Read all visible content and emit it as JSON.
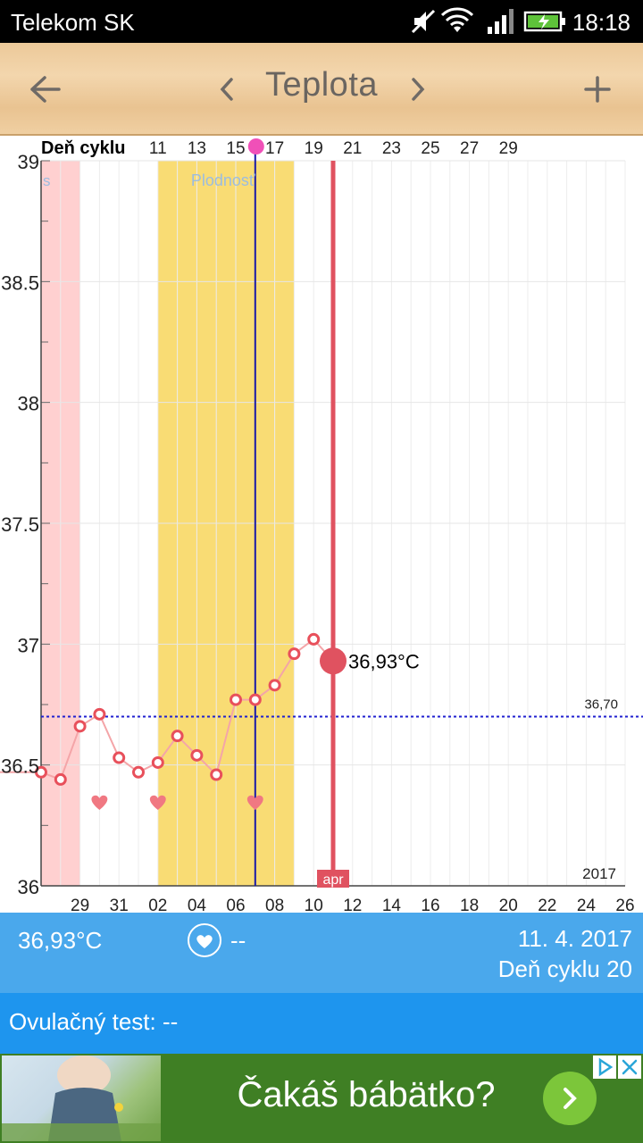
{
  "status_bar": {
    "carrier": "Telekom SK",
    "time": "18:18"
  },
  "toolbar": {
    "title": "Teplota",
    "back_icon": "arrow-left-icon",
    "prev_icon": "chevron-left-icon",
    "next_icon": "chevron-right-icon",
    "add_icon": "plus-icon"
  },
  "chart_data": {
    "type": "line",
    "ylim": [
      36,
      39
    ],
    "y_ticks": [
      "39",
      "38.5",
      "38",
      "37.5",
      "37",
      "36.5",
      "36"
    ],
    "top_axis_label": "Deň cyklu",
    "top_ticks": [
      "11",
      "13",
      "15",
      "17",
      "19",
      "21",
      "23",
      "25",
      "27",
      "29"
    ],
    "bottom_ticks": [
      "29",
      "31",
      "02",
      "04",
      "06",
      "08",
      "10",
      "12",
      "14",
      "16",
      "18",
      "20",
      "22",
      "24",
      "26"
    ],
    "month_label": "apr",
    "year_label": "2017",
    "menses_label": "s",
    "fertile_label": "Plodnosť",
    "coverline": 36.7,
    "coverline_label": "36,70",
    "series": [
      {
        "values": [
          36.47,
          36.44,
          36.66,
          36.71,
          36.53,
          36.47,
          36.51,
          36.62,
          36.54,
          36.46,
          36.77,
          36.77,
          36.83,
          36.96,
          37.02
        ]
      }
    ],
    "selected_value": 36.93,
    "selected_label": "36,93°C",
    "intercourse_days": [
      3,
      6,
      11
    ],
    "colors": {
      "menses": "#ffd0d0",
      "fertile": "#f9dc74",
      "line": "#f4a5a8",
      "point": "#e8505b",
      "selected": "#e05260",
      "ovulation": "#1a1aa8",
      "coverline": "#2020d0",
      "heart": "#f07882"
    }
  },
  "info": {
    "temperature": "36,93°C",
    "sex_value": "--",
    "date": "11. 4. 2017",
    "cycle_day": "Deň cyklu 20",
    "ovulation_test": "Ovulačný test: --"
  },
  "ad": {
    "headline": "Čakáš bábätko?"
  }
}
